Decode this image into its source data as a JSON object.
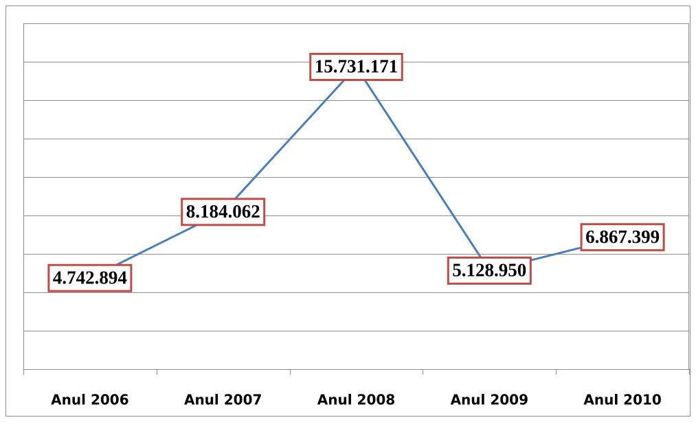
{
  "chart_data": {
    "type": "line",
    "categories": [
      "Anul 2006",
      "Anul 2007",
      "Anul 2008",
      "Anul 2009",
      "Anul 2010"
    ],
    "series": [
      {
        "color": "#4a7ebb",
        "values": [
          4742894,
          8184062,
          15731171,
          5128950,
          6867399
        ],
        "value_labels": [
          "4.742.894",
          "8.184.062",
          "15.731.171",
          "5.128.950",
          "6.867.399"
        ]
      }
    ],
    "ylim": [
      0,
      18000000
    ],
    "yticks": [
      0,
      2000000,
      4000000,
      6000000,
      8000000,
      10000000,
      12000000,
      14000000,
      16000000,
      18000000
    ],
    "grid": true
  }
}
